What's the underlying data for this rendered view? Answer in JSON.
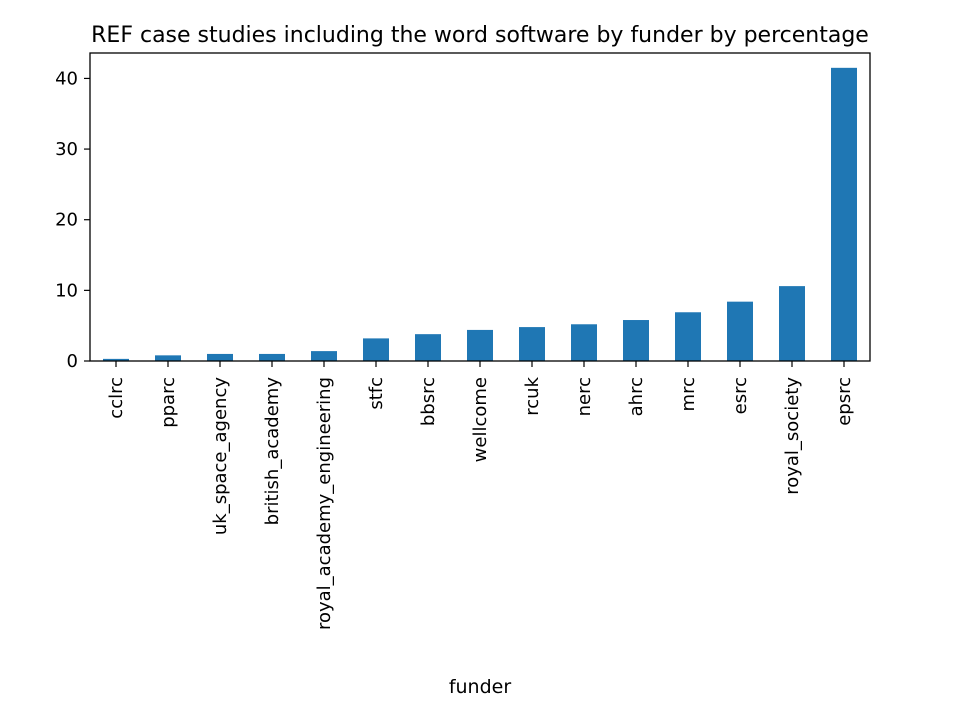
{
  "chart_data": {
    "type": "bar",
    "title": "REF case studies including the word software by funder by percentage",
    "xlabel": "funder",
    "ylabel": "",
    "categories": [
      "cclrc",
      "pparc",
      "uk_space_agency",
      "british_academy",
      "royal_academy_engineering",
      "stfc",
      "bbsrc",
      "wellcome",
      "rcuk",
      "nerc",
      "ahrc",
      "mrc",
      "esrc",
      "royal_society",
      "epsrc"
    ],
    "values": [
      0.3,
      0.8,
      1.0,
      1.0,
      1.4,
      3.2,
      3.8,
      4.4,
      4.8,
      5.2,
      5.8,
      6.9,
      8.4,
      10.6,
      41.5
    ],
    "ylim": [
      0,
      43.6
    ],
    "yticks": [
      0,
      10,
      20,
      30,
      40
    ],
    "bar_color": "#1f77b4",
    "grid": false,
    "legend": "none"
  }
}
